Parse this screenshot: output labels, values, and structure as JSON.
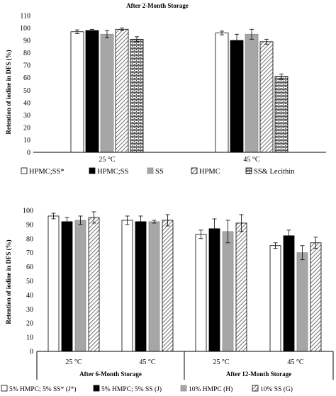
{
  "chart_data": [
    {
      "type": "bar",
      "title": "After 2-Month Storage",
      "ylabel": "Retention of iodine in DFS (%)",
      "ylim": [
        0,
        110
      ],
      "yticks": [
        0,
        10,
        20,
        30,
        40,
        50,
        60,
        70,
        80,
        90,
        100,
        110
      ],
      "categories": [
        "25 °C",
        "45 °C"
      ],
      "legend_position": "bottom",
      "series": [
        {
          "name": "HPMC;SS*",
          "fill": "white",
          "values": [
            97,
            96
          ],
          "errors": [
            1.5,
            1.5
          ]
        },
        {
          "name": "HPMC;SS",
          "fill": "black",
          "values": [
            98,
            90
          ],
          "errors": [
            1,
            5
          ]
        },
        {
          "name": "SS",
          "fill": "gray",
          "values": [
            95,
            95
          ],
          "errors": [
            3,
            4
          ]
        },
        {
          "name": "HPMC",
          "fill": "diagonal",
          "values": [
            99,
            89
          ],
          "errors": [
            1,
            2
          ]
        },
        {
          "name": "SS& Lecithin",
          "fill": "brick",
          "values": [
            91,
            61
          ],
          "errors": [
            2,
            2
          ]
        }
      ]
    },
    {
      "type": "bar",
      "ylabel": "Retention of iodine in DFS (%)",
      "ylim": [
        0,
        100
      ],
      "yticks": [
        0,
        10,
        20,
        30,
        40,
        50,
        60,
        70,
        80,
        90,
        100
      ],
      "groups": [
        {
          "label": "After 6-Month Storage",
          "categories": [
            "25 °C",
            "45 °C"
          ]
        },
        {
          "label": "After 12-Month Storage",
          "categories": [
            "25 °C",
            "45 °C"
          ]
        }
      ],
      "legend_position": "bottom",
      "series": [
        {
          "name": "5% HMPC; 5% SS* (J*)",
          "fill": "white",
          "values": [
            96,
            93,
            83,
            75
          ],
          "errors": [
            2,
            3,
            3,
            2
          ]
        },
        {
          "name": "5% HMPC; 5% SS (J)",
          "fill": "black",
          "values": [
            92,
            92,
            87,
            82
          ],
          "errors": [
            3,
            4,
            7,
            4
          ]
        },
        {
          "name": "10% HMPC (H)",
          "fill": "gray",
          "values": [
            93,
            92,
            85,
            70
          ],
          "errors": [
            3,
            1,
            8,
            5
          ]
        },
        {
          "name": "10% SS (G)",
          "fill": "diagonal",
          "values": [
            95,
            93,
            91,
            77
          ],
          "errors": [
            4,
            4,
            6,
            4
          ]
        }
      ]
    }
  ],
  "colors": {
    "gray": "#a6a6a6",
    "black": "#000000",
    "white": "#ffffff"
  }
}
